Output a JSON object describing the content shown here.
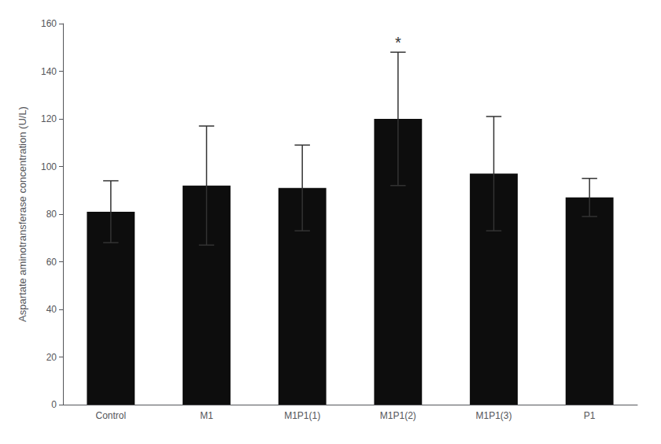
{
  "chart_data": {
    "type": "bar",
    "categories": [
      "Control",
      "M1",
      "M1P1(1)",
      "M1P1(2)",
      "M1P1(3)",
      "P1"
    ],
    "values": [
      81,
      92,
      91,
      120,
      97,
      87
    ],
    "errors": [
      13,
      25,
      18,
      28,
      24,
      8
    ],
    "color": "#0d0d0d",
    "ylabel": "Aspartate aminotransferase concentration (U/L)",
    "ylim": [
      0,
      160
    ],
    "yticks": [
      0,
      20,
      40,
      60,
      80,
      100,
      120,
      140,
      160
    ],
    "grid": false,
    "annotations": [
      {
        "text": "*",
        "category": "M1P1(2)"
      }
    ]
  }
}
